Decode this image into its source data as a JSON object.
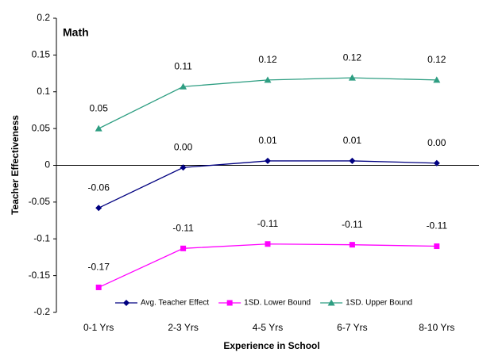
{
  "chart_data": {
    "type": "line",
    "title": "Math",
    "x_label": "Experience in School",
    "y_label": "Teacher Effectiveness",
    "categories": [
      "0-1 Yrs",
      "2-3 Yrs",
      "4-5 Yrs",
      "6-7 Yrs",
      "8-10 Yrs"
    ],
    "ylim": [
      -0.2,
      0.2
    ],
    "yticks": [
      -0.2,
      -0.15,
      -0.1,
      -0.05,
      0,
      0.05,
      0.1,
      0.15,
      0.2
    ],
    "legend": "bottom",
    "series": [
      {
        "name": "Avg. Teacher Effect",
        "color": "#000080",
        "marker": "diamond",
        "values": [
          -0.058,
          -0.003,
          0.006,
          0.006,
          0.003
        ],
        "value_labels": [
          "-0.06",
          "0.00",
          "0.01",
          "0.01",
          "0.00"
        ]
      },
      {
        "name": "1SD. Lower Bound",
        "color": "#ff00ff",
        "marker": "square",
        "values": [
          -0.166,
          -0.113,
          -0.107,
          -0.108,
          -0.11
        ],
        "value_labels": [
          "-0.17",
          "-0.11",
          "-0.11",
          "-0.11",
          "-0.11"
        ]
      },
      {
        "name": "1SD. Upper Bound",
        "color": "#2e9e82",
        "marker": "triangle",
        "values": [
          0.05,
          0.107,
          0.116,
          0.119,
          0.116
        ],
        "value_labels": [
          "0.05",
          "0.11",
          "0.12",
          "0.12",
          "0.12"
        ]
      }
    ]
  }
}
